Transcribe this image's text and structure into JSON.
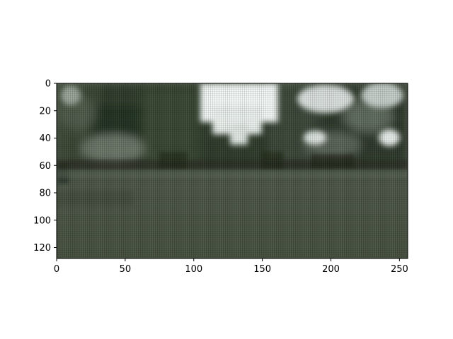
{
  "chart_data": {
    "type": "image",
    "title": "",
    "xlabel": "",
    "ylabel": "",
    "image_width": 256,
    "image_height": 128,
    "xlim": [
      0,
      256
    ],
    "ylim": [
      128,
      0
    ],
    "x_ticks": [
      0,
      50,
      100,
      150,
      200,
      250
    ],
    "y_ticks": [
      0,
      20,
      40,
      60,
      80,
      100,
      120
    ],
    "image_content": "blurry reconstructed street scene: dark green trees along the top, a bright white sky gap near the top center, grey-green road surface across the lower half",
    "colors": {
      "road": "#4e5649",
      "trees": "#2f3a2c",
      "sky": "#f2f7f5",
      "axis": "#000000"
    }
  }
}
